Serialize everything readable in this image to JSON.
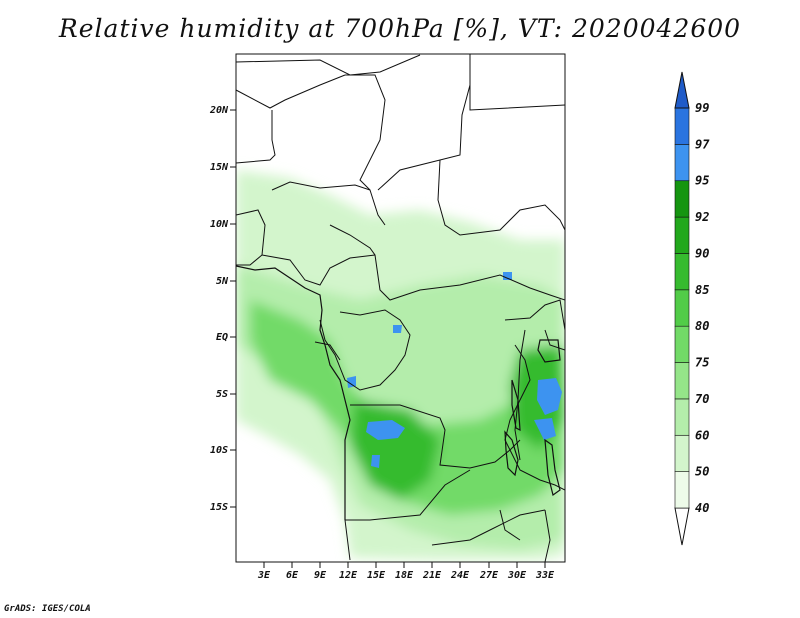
{
  "title": "Relative humidity at 700hPa [%], VT: 2020042600",
  "credit": "GrADS: IGES/COLA",
  "map": {
    "lat_ticks": [
      "20N",
      "15N",
      "10N",
      "5N",
      "EQ",
      "5S",
      "10S",
      "15S"
    ],
    "lon_ticks": [
      "3E",
      "6E",
      "9E",
      "12E",
      "15E",
      "18E",
      "21E",
      "24E",
      "27E",
      "30E",
      "33E"
    ]
  },
  "colorbar": {
    "levels": [
      "40",
      "50",
      "60",
      "70",
      "75",
      "80",
      "85",
      "90",
      "92",
      "95",
      "97",
      "99"
    ],
    "colors": [
      "#ffffff",
      "#edfbe9",
      "#d3f5cc",
      "#b4edab",
      "#95e589",
      "#72da67",
      "#52cc48",
      "#36bb2f",
      "#22a81c",
      "#159510",
      "#3d93f0",
      "#2a74e0",
      "#1f5bc8"
    ]
  }
}
